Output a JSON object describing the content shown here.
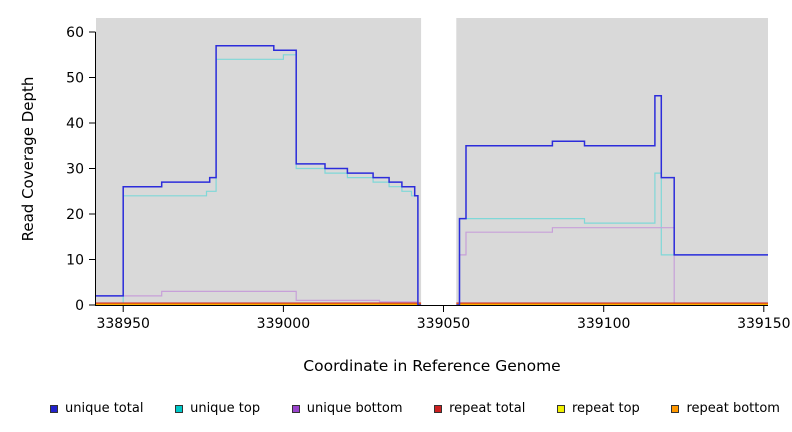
{
  "chart_data": {
    "type": "line",
    "style": "step-after",
    "title": "",
    "xlabel": "Coordinate in Reference Genome",
    "ylabel": "Read Coverage Depth",
    "x_range": [
      338941.5,
      339151.3
    ],
    "y_range": [
      0,
      60
    ],
    "x_ticks": [
      338950,
      339000,
      339050,
      339100,
      339150
    ],
    "y_ticks": [
      0,
      10,
      20,
      30,
      40,
      50,
      60
    ],
    "plot_bg": "#d9d9d9",
    "axis_color": "#000000",
    "gap_band": {
      "x_start": 339043,
      "x_end": 339054,
      "color": "#ffffff"
    },
    "series": [
      {
        "name": "unique top",
        "color": "#7fd8d8",
        "width": 1.2,
        "points": [
          [
            338941.5,
            0
          ],
          [
            338950,
            24
          ],
          [
            338976,
            25
          ],
          [
            338979,
            54
          ],
          [
            339000,
            55
          ],
          [
            339004,
            30
          ],
          [
            339013,
            29
          ],
          [
            339020,
            28
          ],
          [
            339028,
            27
          ],
          [
            339033,
            26
          ],
          [
            339037,
            25
          ],
          [
            339040,
            24
          ],
          [
            339042,
            0
          ],
          [
            339055,
            19
          ],
          [
            339094,
            18
          ],
          [
            339116,
            29
          ],
          [
            339118,
            11
          ]
        ]
      },
      {
        "name": "unique bottom",
        "color": "#c7a0d9",
        "width": 1.2,
        "points": [
          [
            338941.5,
            2
          ],
          [
            338962,
            3
          ],
          [
            339004,
            1
          ],
          [
            339030,
            0.7
          ],
          [
            339042,
            0
          ],
          [
            339055,
            11
          ],
          [
            339057,
            16
          ],
          [
            339084,
            17
          ],
          [
            339122,
            0
          ]
        ]
      },
      {
        "name": "repeat total",
        "color": "#cc2020",
        "width": 1.1,
        "points": [
          [
            338941.5,
            0.45
          ]
        ]
      },
      {
        "name": "repeat top",
        "color": "#f0f000",
        "width": 1.1,
        "points": [
          [
            338941.5,
            0.1
          ]
        ]
      },
      {
        "name": "repeat bottom",
        "color": "#ff9800",
        "width": 1.2,
        "points": [
          [
            338941.5,
            0.2
          ]
        ]
      },
      {
        "name": "unique total",
        "color": "#2c2cdb",
        "width": 1.5,
        "points": [
          [
            338941.5,
            2
          ],
          [
            338950,
            26
          ],
          [
            338962,
            27
          ],
          [
            338977,
            28
          ],
          [
            338979,
            57
          ],
          [
            338997,
            56
          ],
          [
            339004,
            31
          ],
          [
            339013,
            30
          ],
          [
            339020,
            29
          ],
          [
            339028,
            28
          ],
          [
            339033,
            27
          ],
          [
            339037,
            26
          ],
          [
            339041,
            24
          ],
          [
            339042,
            0
          ],
          [
            339055,
            19
          ],
          [
            339057,
            35
          ],
          [
            339084,
            36
          ],
          [
            339094,
            35
          ],
          [
            339116,
            46
          ],
          [
            339118,
            28
          ],
          [
            339122,
            11
          ]
        ]
      }
    ],
    "legend": [
      {
        "label": "unique total",
        "color": "#2222cc"
      },
      {
        "label": "unique top",
        "color": "#00c8c8"
      },
      {
        "label": "unique bottom",
        "color": "#9944cc"
      },
      {
        "label": "repeat total",
        "color": "#cc2020"
      },
      {
        "label": "repeat top",
        "color": "#f0f000"
      },
      {
        "label": "repeat bottom",
        "color": "#ff9800"
      }
    ]
  }
}
